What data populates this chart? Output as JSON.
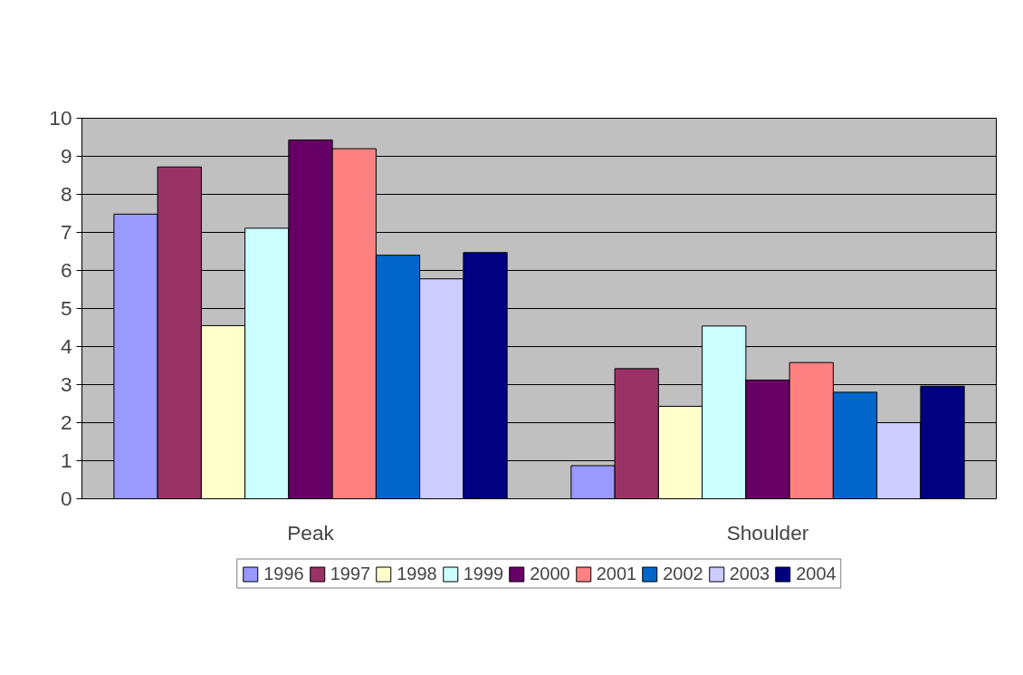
{
  "chart_data": {
    "type": "bar",
    "categories": [
      "Peak",
      "Shoulder"
    ],
    "series": [
      {
        "name": "1996",
        "color": "#9999ff",
        "values": [
          7.48,
          0.87
        ]
      },
      {
        "name": "1997",
        "color": "#993366",
        "values": [
          8.72,
          3.42
        ]
      },
      {
        "name": "1998",
        "color": "#ffffcc",
        "values": [
          4.55,
          2.43
        ]
      },
      {
        "name": "1999",
        "color": "#ccffff",
        "values": [
          7.11,
          4.54
        ]
      },
      {
        "name": "2000",
        "color": "#660066",
        "values": [
          9.43,
          3.12
        ]
      },
      {
        "name": "2001",
        "color": "#ff8080",
        "values": [
          9.2,
          3.58
        ]
      },
      {
        "name": "2002",
        "color": "#0066cc",
        "values": [
          6.4,
          2.8
        ]
      },
      {
        "name": "2003",
        "color": "#ccccff",
        "values": [
          5.78,
          2.0
        ]
      },
      {
        "name": "2004",
        "color": "#000080",
        "values": [
          6.47,
          2.96
        ]
      }
    ],
    "ylim": [
      0,
      10
    ],
    "yticks": [
      0,
      1,
      2,
      3,
      4,
      5,
      6,
      7,
      8,
      9,
      10
    ],
    "grid": "y",
    "legend": "bottom"
  }
}
